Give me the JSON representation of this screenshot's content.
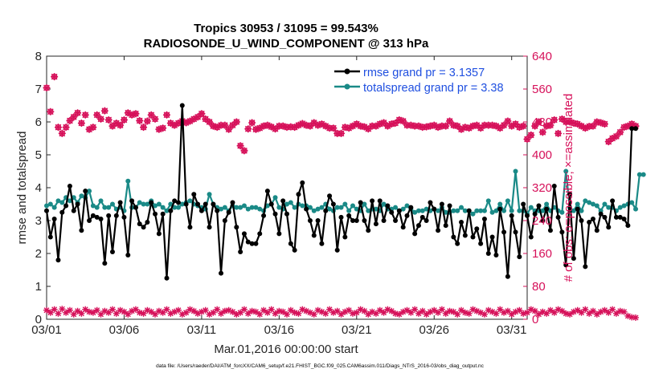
{
  "colors": {
    "rmse": "#000000",
    "spread": "#1a8a87",
    "obs": "#d6115a",
    "legend_text": "#1f4fe0",
    "axis": "#262626"
  },
  "footer": "data file: /Users/raeder/DAI/ATM_forcXX/CAM6_setup/f.e21.FHIST_BGC.f09_025.CAM6assim.011/Diags_NTrS_2016-03/obs_diag_output.nc",
  "chart_data": {
    "type": "line",
    "title_line1": "Tropics 30953 / 31095 = 99.543%",
    "title_line2": "RADIOSONDE_U_WIND_COMPONENT @ 313 hPa",
    "xlabel": "Mar.01,2016 00:00:00 start",
    "ylabel_left": "rmse and totalspread",
    "ylabel_right": "# of obs: o=possible; ×=assimilated",
    "xlim": [
      0,
      31
    ],
    "ylim_left": [
      0,
      8
    ],
    "ylim_right": [
      0,
      640
    ],
    "x_tick_values": [
      0,
      5,
      10,
      15,
      20,
      25,
      30
    ],
    "x_tick_labels": [
      "03/01",
      "03/06",
      "03/11",
      "03/16",
      "03/21",
      "03/26",
      "03/31"
    ],
    "y_left_ticks": [
      "0",
      "1",
      "2",
      "3",
      "4",
      "5",
      "6",
      "7",
      "8"
    ],
    "y_right_ticks": [
      "0",
      "80",
      "160",
      "240",
      "320",
      "400",
      "480",
      "560",
      "640"
    ],
    "legend": [
      {
        "series": "rmse",
        "label": "rmse grand pr = 3.1357"
      },
      {
        "series": "totalspread",
        "label": "totalspread grand pr = 3.38"
      }
    ],
    "x_step_days": 0.25,
    "series": [
      {
        "name": "rmse",
        "values": [
          3.3,
          2.5,
          3.05,
          1.8,
          3.25,
          3.45,
          4.05,
          3.3,
          3.5,
          2.7,
          3.9,
          3.0,
          3.15,
          3.1,
          3.05,
          1.7,
          3.15,
          2.05,
          3.15,
          3.55,
          3.1,
          1.95,
          3.6,
          3.4,
          2.9,
          2.8,
          2.95,
          3.55,
          3.2,
          2.6,
          3.2,
          1.25,
          3.3,
          3.6,
          3.55,
          6.5,
          3.5,
          2.8,
          3.8,
          3.5,
          3.3,
          3.5,
          2.8,
          3.5,
          3.3,
          1.4,
          3.0,
          3.25,
          3.55,
          2.8,
          2.05,
          2.6,
          2.35,
          2.3,
          2.3,
          2.6,
          3.15,
          3.9,
          3.5,
          3.2,
          2.6,
          3.6,
          3.2,
          2.3,
          2.1,
          3.8,
          4.15,
          3.35,
          3.0,
          2.55,
          3.0,
          2.3,
          3.3,
          3.75,
          3.5,
          2.1,
          3.1,
          2.5,
          3.15,
          3.0,
          3.0,
          3.55,
          3.0,
          2.7,
          3.6,
          2.9,
          3.6,
          3.0,
          3.45,
          3.25,
          3.0,
          3.3,
          2.8,
          3.15,
          3.4,
          2.6,
          2.85,
          3.1,
          3.0,
          3.55,
          3.35,
          2.7,
          3.5,
          2.85,
          3.45,
          2.5,
          2.3,
          2.95,
          2.55,
          3.3,
          2.5,
          2.75,
          2.3,
          3.05,
          2.0,
          2.5,
          1.95,
          3.35,
          2.65,
          1.3,
          3.15,
          2.65,
          1.9,
          3.5,
          3.15,
          2.5,
          3.2,
          3.45,
          3.0,
          3.35,
          2.7,
          4.05,
          3.1,
          2.65,
          1.65,
          3.8,
          1.85,
          3.35,
          3.0,
          1.6,
          2.95,
          3.05,
          2.7,
          3.2,
          3.1,
          2.8,
          3.6,
          3.1,
          3.1,
          3.05,
          2.85,
          5.8,
          5.8
        ]
      },
      {
        "name": "totalspread",
        "values": [
          3.45,
          3.5,
          3.4,
          3.6,
          3.55,
          3.7,
          3.6,
          3.7,
          3.55,
          3.75,
          3.7,
          3.9,
          3.45,
          3.4,
          3.6,
          3.4,
          3.4,
          3.5,
          3.35,
          3.4,
          3.3,
          4.2,
          3.4,
          3.4,
          3.55,
          3.5,
          3.5,
          3.6,
          3.45,
          3.5,
          3.4,
          3.3,
          3.5,
          3.4,
          3.4,
          3.5,
          3.55,
          3.6,
          3.5,
          3.45,
          3.4,
          3.35,
          3.8,
          3.5,
          3.4,
          3.35,
          3.4,
          3.3,
          3.45,
          3.4,
          3.4,
          3.45,
          3.35,
          3.4,
          3.4,
          3.35,
          3.3,
          3.45,
          3.5,
          3.7,
          3.4,
          3.35,
          3.5,
          3.55,
          3.4,
          3.5,
          3.45,
          3.45,
          3.4,
          3.3,
          3.35,
          3.4,
          3.5,
          3.35,
          3.3,
          3.4,
          3.4,
          3.5,
          3.3,
          3.45,
          3.35,
          3.3,
          3.5,
          3.3,
          3.35,
          3.35,
          3.3,
          3.5,
          3.35,
          3.35,
          3.4,
          3.3,
          3.35,
          3.45,
          3.35,
          3.25,
          3.3,
          3.3,
          3.35,
          3.3,
          3.35,
          3.3,
          3.4,
          3.25,
          3.25,
          3.3,
          3.3,
          3.4,
          3.3,
          3.3,
          3.2,
          3.3,
          3.3,
          3.3,
          3.6,
          3.25,
          3.3,
          3.5,
          3.3,
          3.6,
          3.3,
          4.5,
          3.3,
          3.3,
          3.2,
          3.4,
          3.3,
          3.3,
          3.3,
          3.5,
          3.3,
          3.4,
          3.3,
          3.25,
          4.5,
          3.4,
          3.3,
          3.5,
          3.3,
          3.6,
          3.55,
          3.5,
          3.45,
          3.3,
          3.5,
          3.4,
          3.4,
          3.3,
          3.4,
          3.45,
          3.5,
          3.55,
          3.35,
          4.4,
          4.4
        ]
      }
    ],
    "obs_possible": [
      563,
      505,
      590,
      467,
      452,
      467,
      483,
      492,
      502,
      477,
      497,
      462,
      467,
      497,
      487,
      507,
      485,
      470,
      477,
      472,
      485,
      502,
      497,
      500,
      483,
      467,
      482,
      497,
      487,
      462,
      465,
      497,
      477,
      472,
      477,
      482,
      478,
      482,
      487,
      492,
      500,
      487,
      480,
      470,
      467,
      472,
      472,
      462,
      472,
      480,
      422,
      410,
      463,
      478,
      462,
      465,
      470,
      472,
      468,
      463,
      470,
      470,
      467,
      468,
      467,
      472,
      476,
      472,
      470,
      478,
      472,
      475,
      470,
      465,
      465,
      452,
      452,
      467,
      465,
      470,
      475,
      470,
      468,
      463,
      470,
      470,
      475,
      478,
      470,
      475,
      477,
      485,
      482,
      472,
      472,
      470,
      470,
      467,
      468,
      470,
      472,
      467,
      470,
      470,
      482,
      472,
      470,
      462,
      467,
      465,
      470,
      472,
      465,
      472,
      472,
      472,
      470,
      465,
      472,
      482,
      470,
      475,
      467,
      470,
      438,
      448,
      470,
      480,
      455,
      470,
      472,
      485,
      452,
      487,
      480,
      480,
      477,
      475,
      470,
      465,
      469,
      470,
      480,
      478,
      475,
      432,
      440,
      445,
      455,
      467,
      470,
      475,
      470
    ],
    "obs_assimilated": [
      563,
      505,
      590,
      467,
      452,
      467,
      483,
      492,
      502,
      477,
      497,
      462,
      467,
      497,
      487,
      507,
      485,
      470,
      477,
      472,
      485,
      502,
      497,
      500,
      483,
      467,
      482,
      497,
      487,
      462,
      465,
      497,
      477,
      472,
      477,
      482,
      478,
      482,
      487,
      492,
      500,
      487,
      480,
      470,
      467,
      472,
      472,
      462,
      472,
      480,
      422,
      410,
      463,
      478,
      462,
      465,
      470,
      472,
      468,
      463,
      470,
      470,
      467,
      468,
      467,
      472,
      476,
      472,
      470,
      478,
      472,
      475,
      470,
      465,
      465,
      452,
      452,
      467,
      465,
      470,
      475,
      470,
      468,
      463,
      470,
      470,
      475,
      478,
      470,
      475,
      477,
      485,
      482,
      472,
      472,
      470,
      470,
      467,
      468,
      470,
      472,
      467,
      470,
      470,
      482,
      472,
      470,
      462,
      467,
      465,
      470,
      472,
      465,
      472,
      472,
      472,
      470,
      465,
      472,
      482,
      470,
      475,
      467,
      470,
      438,
      448,
      470,
      480,
      455,
      470,
      472,
      485,
      452,
      487,
      480,
      480,
      477,
      475,
      470,
      465,
      469,
      470,
      480,
      478,
      475,
      432,
      440,
      445,
      455,
      467,
      470,
      475,
      470
    ],
    "obs_low_possible": [
      22,
      16,
      24,
      14,
      25,
      16,
      22,
      12,
      20,
      14,
      24,
      18,
      16,
      22,
      12,
      20,
      16,
      24,
      14,
      22,
      18,
      12,
      20,
      24,
      16,
      14,
      22,
      18,
      12,
      20,
      16,
      24,
      14,
      18,
      22,
      12,
      16,
      24,
      20,
      14,
      18,
      22,
      12,
      16,
      24,
      14,
      20,
      22,
      18,
      12,
      16,
      24,
      14,
      20,
      18,
      12,
      22,
      16,
      24,
      14,
      20,
      18,
      12,
      22,
      16,
      14,
      24,
      20,
      16,
      12,
      22,
      18,
      14,
      24,
      16,
      20,
      12,
      18,
      22,
      14,
      16,
      24,
      20,
      12,
      18,
      14,
      22,
      16,
      24,
      20,
      14,
      12,
      18,
      22,
      16,
      24,
      14,
      20,
      12,
      18,
      22,
      16,
      24,
      14,
      20,
      18,
      12,
      22,
      16,
      14,
      24,
      20,
      16,
      12,
      22,
      18,
      14,
      24,
      16,
      20,
      12,
      18,
      22,
      14,
      16,
      24,
      20,
      12,
      18,
      14,
      22,
      16,
      24,
      20,
      14,
      12,
      18,
      22,
      16,
      24,
      14,
      20,
      12,
      18,
      22,
      16,
      24,
      14,
      20,
      18,
      8,
      5,
      4
    ]
  }
}
